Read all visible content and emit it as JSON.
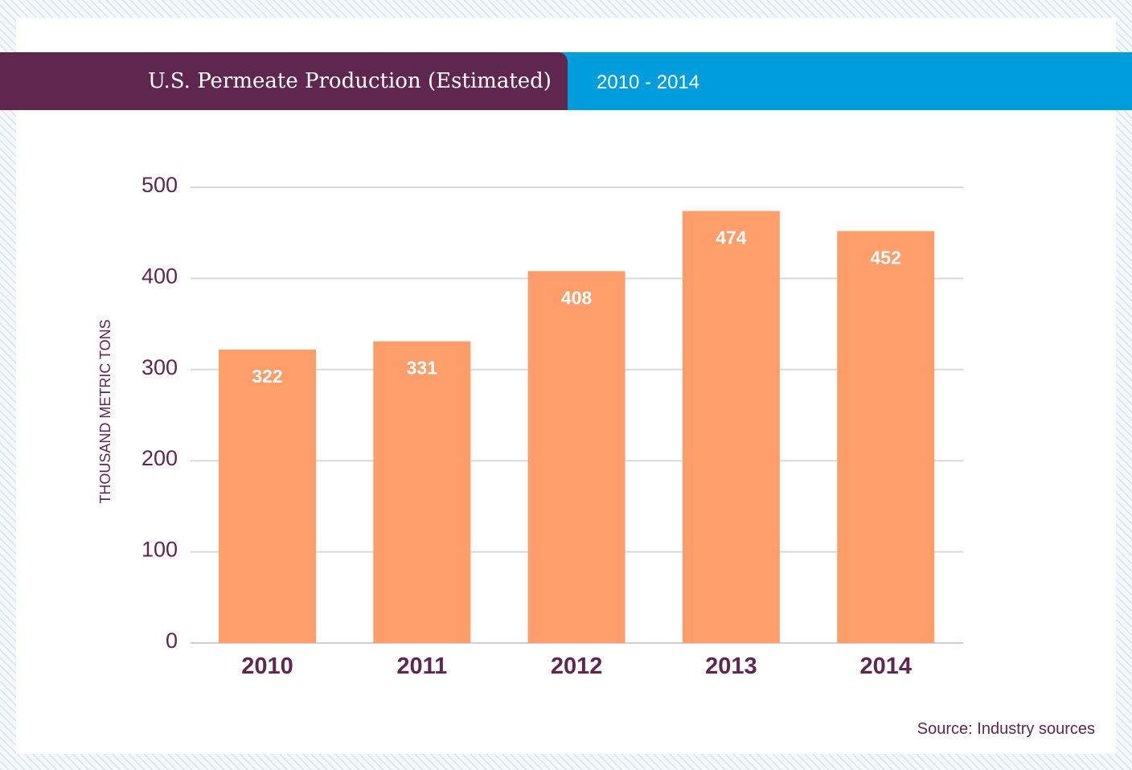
{
  "header": {
    "title": "U.S. Permeate Production (Estimated)",
    "subtitle": "2010 - 2014"
  },
  "footer": {
    "source": "Source: Industry sources"
  },
  "colors": {
    "title_band": "#5f2750",
    "subtitle_band": "#009ddc",
    "bar": "#ff9e6b",
    "text": "#5f2750",
    "grid": "#d9d9d9"
  },
  "chart_data": {
    "type": "bar",
    "categories": [
      "2010",
      "2011",
      "2012",
      "2013",
      "2014"
    ],
    "values": [
      322,
      331,
      408,
      474,
      452
    ],
    "title": "U.S. Permeate Production (Estimated)",
    "subtitle": "2010 - 2014",
    "xlabel": "",
    "ylabel": "THOUSAND METRIC TONS",
    "ylim": [
      0,
      500
    ],
    "yticks": [
      0,
      100,
      200,
      300,
      400,
      500
    ],
    "grid": true,
    "data_labels": true
  }
}
